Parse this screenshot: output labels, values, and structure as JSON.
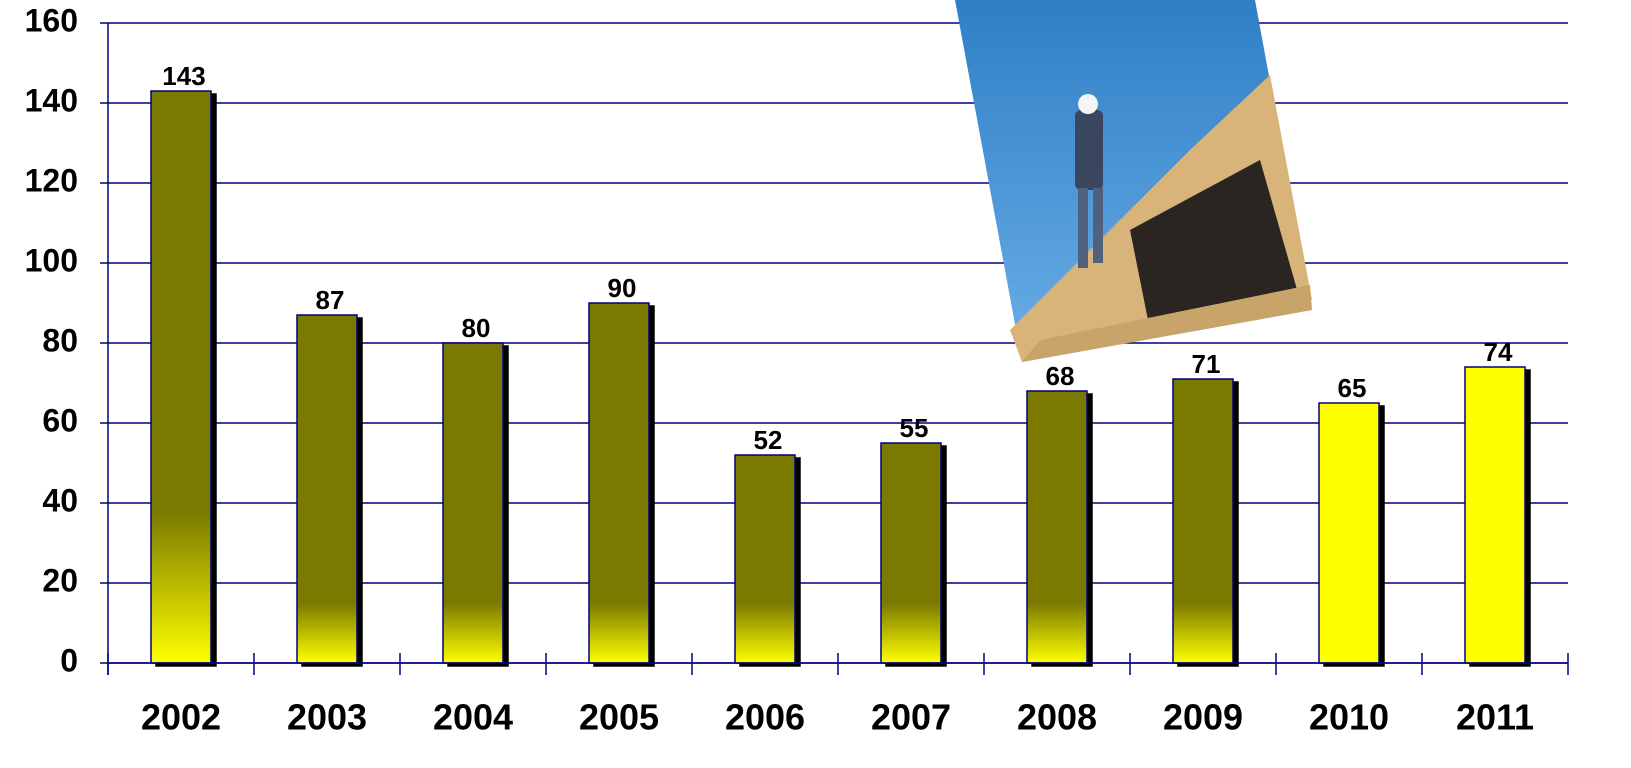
{
  "chart_data": {
    "type": "bar",
    "categories": [
      "2002",
      "2003",
      "2004",
      "2005",
      "2006",
      "2007",
      "2008",
      "2009",
      "2010",
      "2011"
    ],
    "values": [
      143,
      87,
      80,
      90,
      52,
      55,
      68,
      71,
      65,
      74
    ],
    "colors": [
      "#7a7a00",
      "#7a7a00",
      "#7a7a00",
      "#7a7a00",
      "#7a7a00",
      "#7a7a00",
      "#7a7a00",
      "#7a7a00",
      "#ffff00",
      "#ffff00"
    ],
    "ylim": [
      0,
      160
    ],
    "yticks": [
      0,
      20,
      40,
      60,
      80,
      100,
      120,
      140,
      160
    ],
    "grid": true
  }
}
